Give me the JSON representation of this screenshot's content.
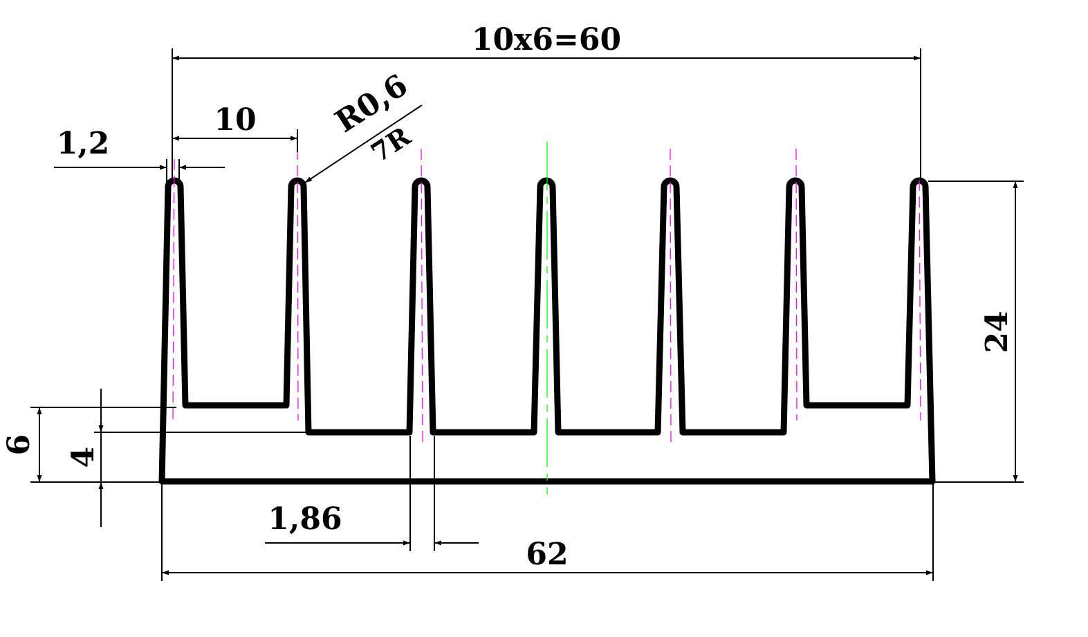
{
  "dimensions": {
    "overall_pitch": "10x6=60",
    "fin_pitch": "10",
    "fin_tip_thickness": "1,2",
    "fin_tip_radius": "R0,6",
    "radius_count": "7R",
    "fin_height": "24",
    "outer_base_height": "6",
    "inner_base_height": "4",
    "fin_root_thickness": "1,86",
    "overall_width": "62"
  },
  "colors": {
    "profile": "#000000",
    "fin_centerline": "#ff00ff",
    "axis_of_symmetry": "#00ff00"
  }
}
